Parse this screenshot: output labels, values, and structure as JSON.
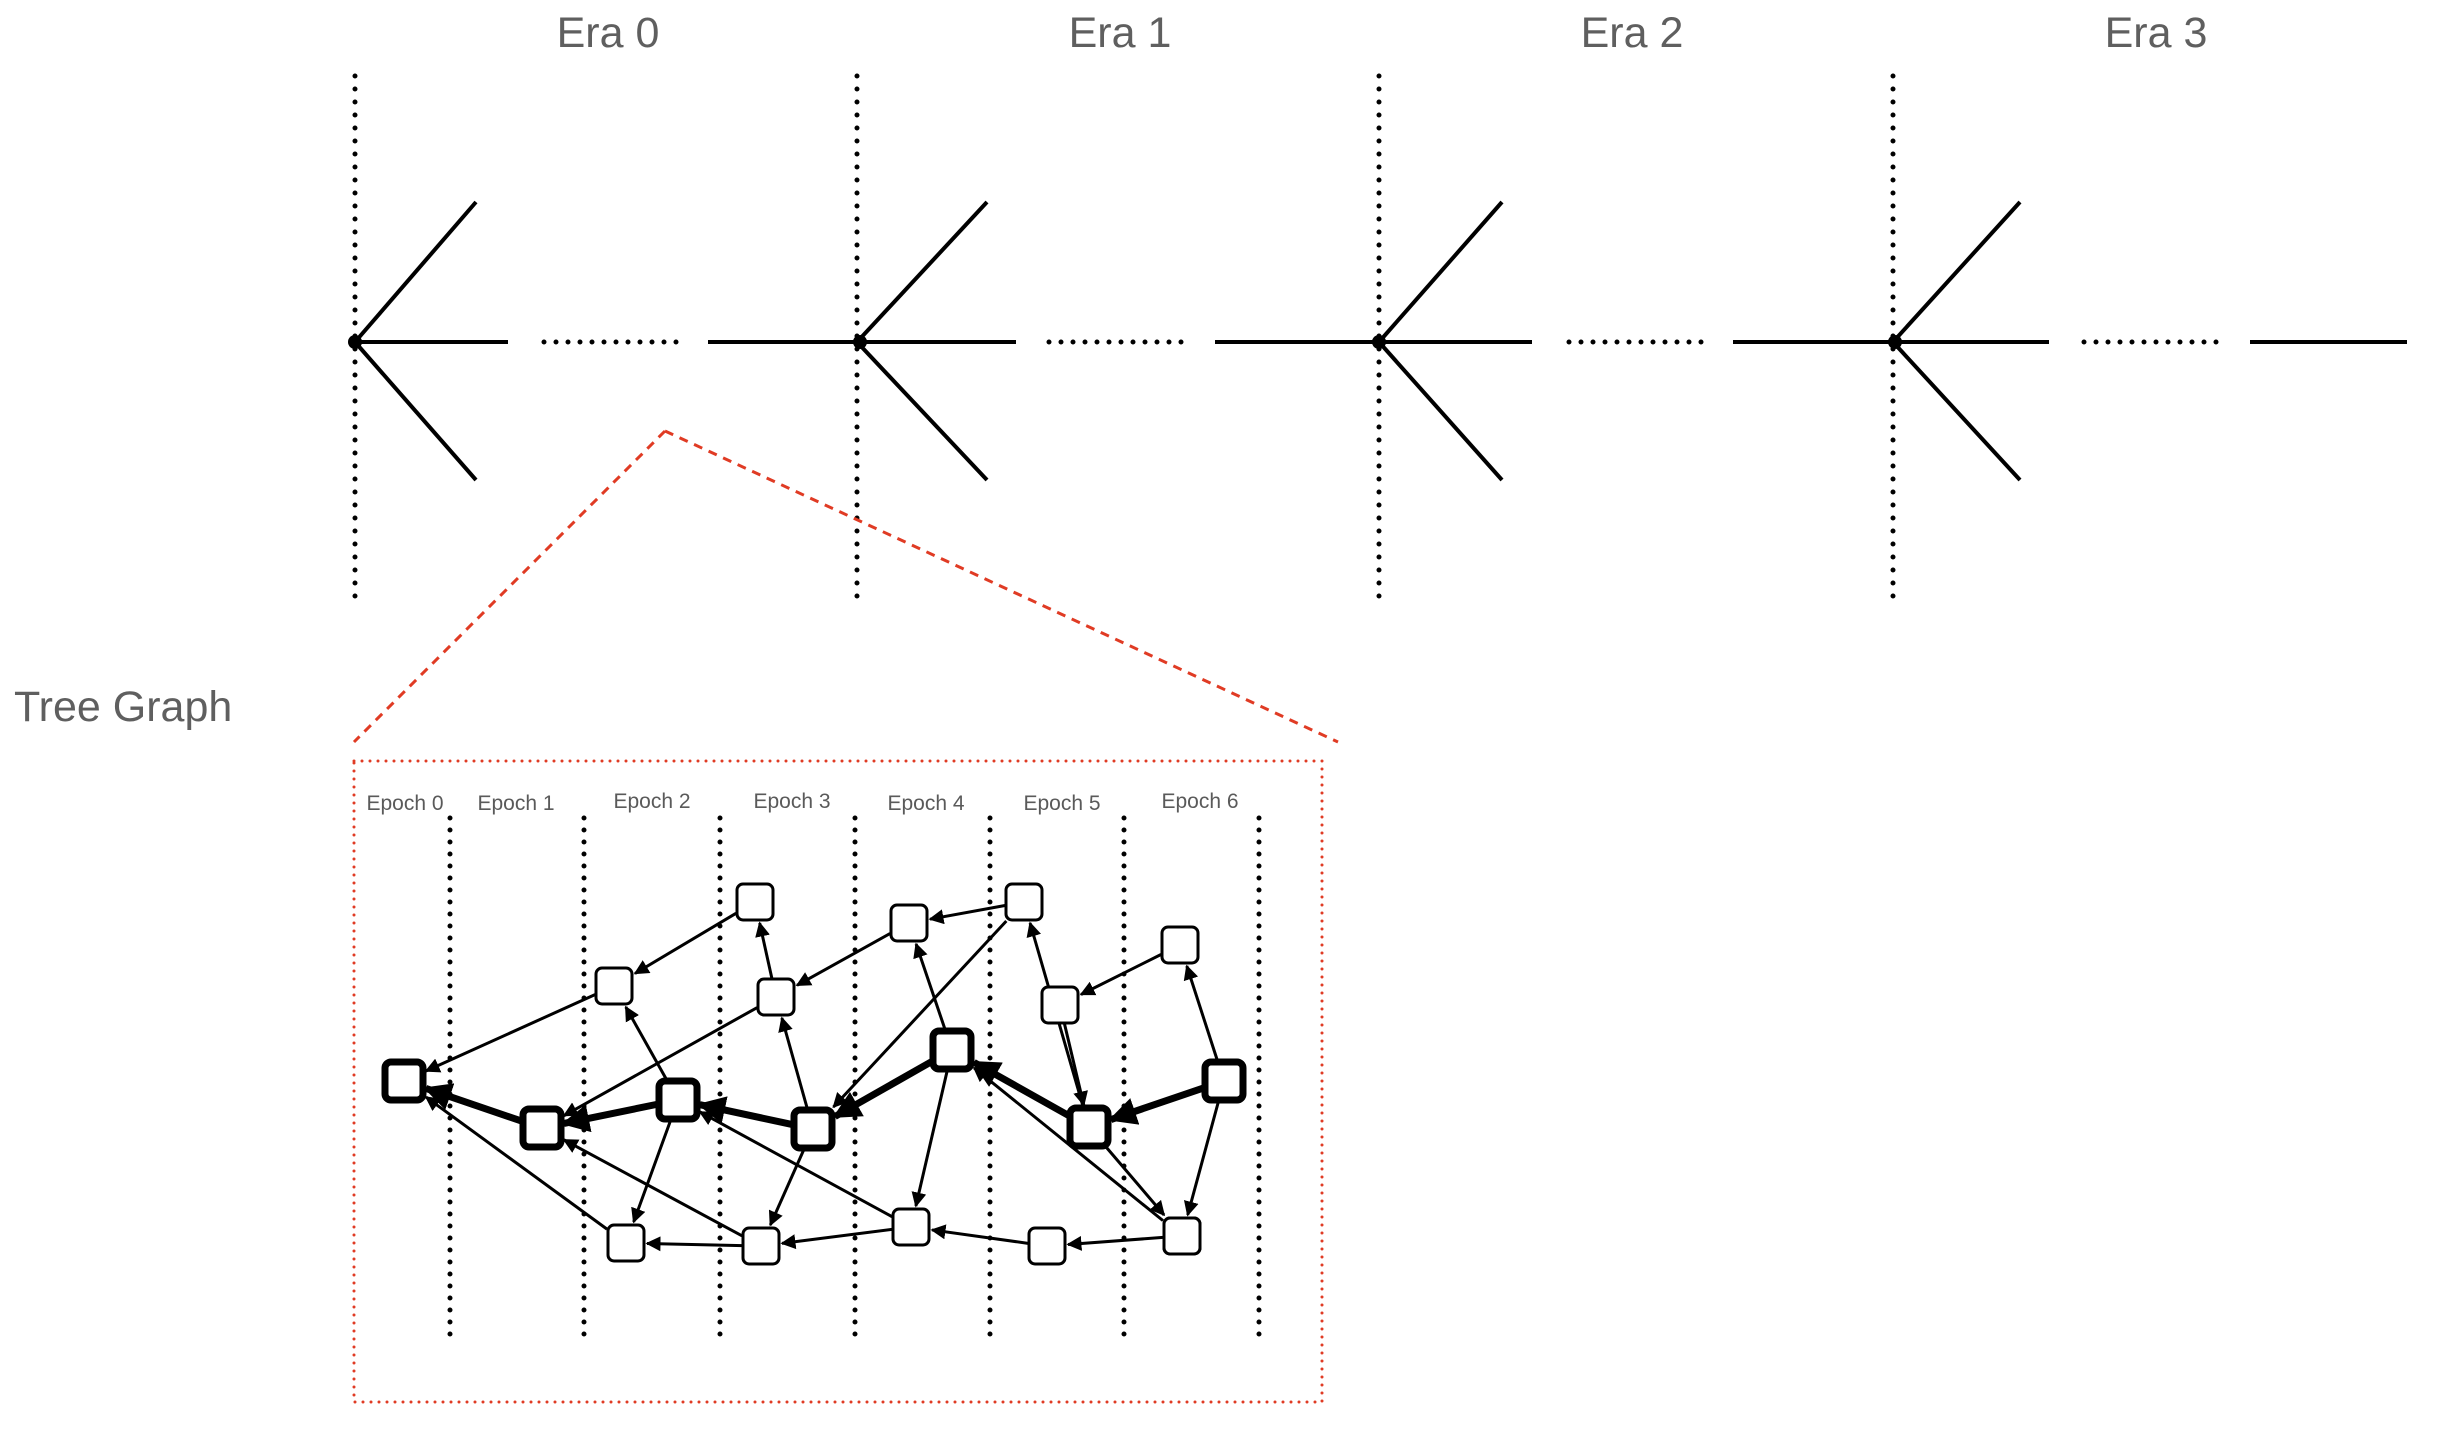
{
  "eras": [
    {
      "label": "Era 0"
    },
    {
      "label": "Era 1"
    },
    {
      "label": "Era 2"
    },
    {
      "label": "Era 3"
    }
  ],
  "tree_graph": {
    "label": "Tree Graph",
    "epochs": [
      {
        "label": "Epoch 0"
      },
      {
        "label": "Epoch 1"
      },
      {
        "label": "Epoch 2"
      },
      {
        "label": "Epoch 3"
      },
      {
        "label": "Epoch 4"
      },
      {
        "label": "Epoch 5"
      },
      {
        "label": "Epoch 6"
      }
    ],
    "blocks": [
      {
        "id": "A",
        "pivot": true
      },
      {
        "id": "B",
        "pivot": true
      },
      {
        "id": "C",
        "pivot": true
      },
      {
        "id": "D",
        "pivot": true
      },
      {
        "id": "E",
        "pivot": true
      },
      {
        "id": "F",
        "pivot": true
      },
      {
        "id": "G",
        "pivot": true
      },
      {
        "id": "H",
        "pivot": false
      },
      {
        "id": "I",
        "pivot": false
      },
      {
        "id": "J",
        "pivot": false
      },
      {
        "id": "K",
        "pivot": false
      },
      {
        "id": "L",
        "pivot": false
      },
      {
        "id": "M",
        "pivot": false
      },
      {
        "id": "N",
        "pivot": false
      },
      {
        "id": "O",
        "pivot": false
      },
      {
        "id": "P",
        "pivot": false
      },
      {
        "id": "Q",
        "pivot": false
      },
      {
        "id": "R",
        "pivot": false
      },
      {
        "id": "S",
        "pivot": false
      },
      {
        "id": "T",
        "pivot": false
      }
    ],
    "edges": [
      {
        "from": "B",
        "to": "A",
        "parent": true
      },
      {
        "from": "C",
        "to": "B",
        "parent": true
      },
      {
        "from": "D",
        "to": "C",
        "parent": true
      },
      {
        "from": "E",
        "to": "D",
        "parent": true
      },
      {
        "from": "F",
        "to": "E",
        "parent": true
      },
      {
        "from": "G",
        "to": "F",
        "parent": true
      },
      {
        "from": "H",
        "to": "A",
        "parent": false
      },
      {
        "from": "I",
        "to": "H",
        "parent": false
      },
      {
        "from": "J",
        "to": "I",
        "parent": false
      },
      {
        "from": "J",
        "to": "B",
        "parent": false
      },
      {
        "from": "C",
        "to": "H",
        "parent": false
      },
      {
        "from": "D",
        "to": "J",
        "parent": false
      },
      {
        "from": "L",
        "to": "K",
        "parent": false
      },
      {
        "from": "K",
        "to": "J",
        "parent": false
      },
      {
        "from": "L",
        "to": "D",
        "parent": false
      },
      {
        "from": "E",
        "to": "K",
        "parent": false
      },
      {
        "from": "F",
        "to": "L",
        "parent": false
      },
      {
        "from": "M",
        "to": "F",
        "parent": false
      },
      {
        "from": "N",
        "to": "M",
        "parent": false
      },
      {
        "from": "G",
        "to": "N",
        "parent": false
      },
      {
        "from": "O",
        "to": "A",
        "parent": false
      },
      {
        "from": "P",
        "to": "O",
        "parent": false
      },
      {
        "from": "P",
        "to": "B",
        "parent": false
      },
      {
        "from": "C",
        "to": "O",
        "parent": false
      },
      {
        "from": "Q",
        "to": "P",
        "parent": false
      },
      {
        "from": "Q",
        "to": "C",
        "parent": false
      },
      {
        "from": "D",
        "to": "P",
        "parent": false
      },
      {
        "from": "R",
        "to": "Q",
        "parent": false
      },
      {
        "from": "E",
        "to": "Q",
        "parent": false
      },
      {
        "from": "S",
        "to": "R",
        "parent": false
      },
      {
        "from": "F",
        "to": "S",
        "parent": false
      },
      {
        "from": "T",
        "to": "E",
        "parent": false
      },
      {
        "from": "G",
        "to": "T",
        "parent": false
      }
    ]
  },
  "colors": {
    "line": "#000000",
    "text": "#5f5f5f",
    "zoom_outline": "#e03b24"
  }
}
